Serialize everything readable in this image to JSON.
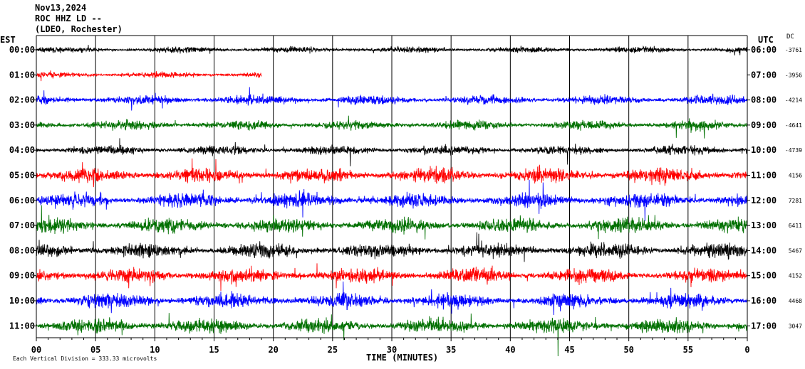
{
  "header": {
    "date": "Nov13,2024",
    "station": "ROC HHZ LD --",
    "network": "(LDEO, Rochester)"
  },
  "labels": {
    "left_zone": "EST",
    "right_zone": "UTC",
    "dc_header": "DC",
    "x_axis_title": "TIME (MINUTES)",
    "scale_note": "Each Vertical Division = 333.33 microvolts"
  },
  "colors": {
    "background": "#ffffff",
    "axis": "#000000",
    "gridlines": "#000000",
    "trace_cycle": [
      "#000000",
      "#ff0000",
      "#0000ff",
      "#007000"
    ]
  },
  "chart_data": {
    "type": "line",
    "x_ticks": [
      "00",
      "05",
      "10",
      "15",
      "20",
      "25",
      "30",
      "35",
      "40",
      "45",
      "50",
      "55",
      "0"
    ],
    "xlim": [
      0,
      60
    ],
    "rows": [
      {
        "est": "00:00",
        "utc": "06:00",
        "dc": "-3761",
        "color": "#000000",
        "amplitude": "low",
        "end_minute": 60
      },
      {
        "est": "01:00",
        "utc": "07:00",
        "dc": "-3956",
        "color": "#ff0000",
        "amplitude": "low",
        "end_minute": 19
      },
      {
        "est": "02:00",
        "utc": "08:00",
        "dc": "-4214",
        "color": "#0000ff",
        "amplitude": "medium",
        "end_minute": 60
      },
      {
        "est": "03:00",
        "utc": "09:00",
        "dc": "-4641",
        "color": "#007000",
        "amplitude": "medium",
        "end_minute": 60
      },
      {
        "est": "04:00",
        "utc": "10:00",
        "dc": "-4739",
        "color": "#000000",
        "amplitude": "medium",
        "end_minute": 60
      },
      {
        "est": "05:00",
        "utc": "11:00",
        "dc": "4156",
        "color": "#ff0000",
        "amplitude": "high",
        "end_minute": 60
      },
      {
        "est": "06:00",
        "utc": "12:00",
        "dc": "7281",
        "color": "#0000ff",
        "amplitude": "high",
        "end_minute": 60
      },
      {
        "est": "07:00",
        "utc": "13:00",
        "dc": "6411",
        "color": "#007000",
        "amplitude": "high",
        "end_minute": 60
      },
      {
        "est": "08:00",
        "utc": "14:00",
        "dc": "5467",
        "color": "#000000",
        "amplitude": "high",
        "end_minute": 60
      },
      {
        "est": "09:00",
        "utc": "15:00",
        "dc": "4152",
        "color": "#ff0000",
        "amplitude": "high",
        "end_minute": 60
      },
      {
        "est": "10:00",
        "utc": "16:00",
        "dc": "4468",
        "color": "#0000ff",
        "amplitude": "high",
        "end_minute": 60
      },
      {
        "est": "11:00",
        "utc": "17:00",
        "dc": "3047",
        "color": "#007000",
        "amplitude": "high",
        "end_minute": 60
      }
    ]
  }
}
